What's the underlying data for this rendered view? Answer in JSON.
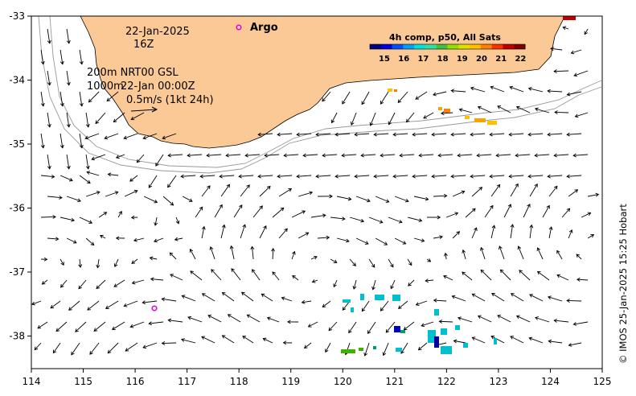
{
  "map": {
    "date_label": "22-Jan-2025",
    "hour_label": "16Z",
    "contours_label": "200m  NRT00 GSL",
    "contours_label_2": "1000m",
    "analysis_time": "22-Jan 00:00Z",
    "vector_scale_label": "0.5m/s (1kt 24h)",
    "argo_label": "Argo",
    "colorbar": {
      "title": "4h comp, p50, All Sats",
      "ticks": [
        "15",
        "16",
        "17",
        "18",
        "19",
        "20",
        "21",
        "22"
      ],
      "colors": [
        "#000080",
        "#0000e0",
        "#0050ff",
        "#00a0ff",
        "#00e0e0",
        "#30e0a0",
        "#40c040",
        "#90e000",
        "#e0e000",
        "#ffc000",
        "#ff8000",
        "#ff3000",
        "#c00000",
        "#800000"
      ]
    },
    "x_ticks": [
      "114",
      "115",
      "116",
      "117",
      "118",
      "119",
      "120",
      "121",
      "122",
      "123",
      "124",
      "125"
    ],
    "y_ticks": [
      "-33",
      "-34",
      "-35",
      "-36",
      "-37",
      "-38"
    ],
    "credit": "© IMOS 25-Jan-2025 15:25 Hobart",
    "land_color": "#fbc996",
    "argo_color": "#e000e0"
  }
}
